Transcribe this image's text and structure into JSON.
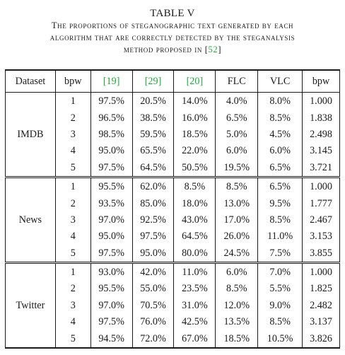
{
  "caption": {
    "table_label": "TABLE V",
    "line1": "The proportions of steganographic text generated by each",
    "line2": "algorithm that are correctly detected by the steganalysis",
    "line3_prefix": "method proposed in [",
    "line3_ref": "52",
    "line3_suffix": "]"
  },
  "colors": {
    "citation": "#1fae3b",
    "text": "#1a1a1a"
  },
  "table": {
    "headers": {
      "dataset": "Dataset",
      "bpw": "bpw",
      "ref1": "[19]",
      "ref2": "[29]",
      "ref3": "[20]",
      "flc": "FLC",
      "vlc": "VLC",
      "bpw2": "bpw"
    },
    "groups": [
      {
        "dataset": "IMDB",
        "rows": [
          {
            "bpw": "1",
            "ref1": "97.5%",
            "ref2": "20.5%",
            "ref3": "14.0%",
            "flc": "4.0%",
            "vlc": "8.0%",
            "bpw2": "1.000",
            "bold": "flc"
          },
          {
            "bpw": "2",
            "ref1": "96.5%",
            "ref2": "38.5%",
            "ref3": "16.0%",
            "flc": "6.5%",
            "vlc": "8.5%",
            "bpw2": "1.838",
            "bold": "flc"
          },
          {
            "bpw": "3",
            "ref1": "98.5%",
            "ref2": "59.5%",
            "ref3": "18.5%",
            "flc": "5.0%",
            "vlc": "4.5%",
            "bpw2": "2.498",
            "bold": "vlc"
          },
          {
            "bpw": "4",
            "ref1": "95.0%",
            "ref2": "65.5%",
            "ref3": "22.0%",
            "flc": "6.0%",
            "vlc": "6.0%",
            "bpw2": "3.145",
            "bold": "both"
          },
          {
            "bpw": "5",
            "ref1": "97.5%",
            "ref2": "64.5%",
            "ref3": "50.5%",
            "flc": "19.5%",
            "vlc": "6.5%",
            "bpw2": "3.721",
            "bold": "vlc"
          }
        ]
      },
      {
        "dataset": "News",
        "rows": [
          {
            "bpw": "1",
            "ref1": "95.5%",
            "ref2": "62.0%",
            "ref3": "8.5%",
            "flc": "8.5%",
            "vlc": "6.5%",
            "bpw2": "1.000",
            "bold": "vlc"
          },
          {
            "bpw": "2",
            "ref1": "93.5%",
            "ref2": "85.0%",
            "ref3": "18.0%",
            "flc": "13.0%",
            "vlc": "9.5%",
            "bpw2": "1.777",
            "bold": "vlc"
          },
          {
            "bpw": "3",
            "ref1": "97.0%",
            "ref2": "92.5%",
            "ref3": "43.0%",
            "flc": "17.0%",
            "vlc": "8.5%",
            "bpw2": "2.467",
            "bold": "vlc"
          },
          {
            "bpw": "4",
            "ref1": "95.0%",
            "ref2": "97.5%",
            "ref3": "64.5%",
            "flc": "26.0%",
            "vlc": "11.0%",
            "bpw2": "3.153",
            "bold": "vlc"
          },
          {
            "bpw": "5",
            "ref1": "97.5%",
            "ref2": "95.0%",
            "ref3": "80.0%",
            "flc": "24.5%",
            "vlc": "7.5%",
            "bpw2": "3.855",
            "bold": "vlc"
          }
        ]
      },
      {
        "dataset": "Twitter",
        "rows": [
          {
            "bpw": "1",
            "ref1": "93.0%",
            "ref2": "42.0%",
            "ref3": "11.0%",
            "flc": "6.0%",
            "vlc": "7.0%",
            "bpw2": "1.000",
            "bold": "flc"
          },
          {
            "bpw": "2",
            "ref1": "95.5%",
            "ref2": "55.0%",
            "ref3": "23.5%",
            "flc": "8.5%",
            "vlc": "5.5%",
            "bpw2": "1.825",
            "bold": "vlc"
          },
          {
            "bpw": "3",
            "ref1": "97.0%",
            "ref2": "70.5%",
            "ref3": "31.0%",
            "flc": "12.0%",
            "vlc": "9.0%",
            "bpw2": "2.482",
            "bold": "vlc"
          },
          {
            "bpw": "4",
            "ref1": "97.5%",
            "ref2": "76.0%",
            "ref3": "42.5%",
            "flc": "13.5%",
            "vlc": "8.5%",
            "bpw2": "3.137",
            "bold": "vlc"
          },
          {
            "bpw": "5",
            "ref1": "94.5%",
            "ref2": "72.0%",
            "ref3": "67.0%",
            "flc": "18.5%",
            "vlc": "10.5%",
            "bpw2": "3.826",
            "bold": "vlc"
          }
        ]
      }
    ]
  }
}
